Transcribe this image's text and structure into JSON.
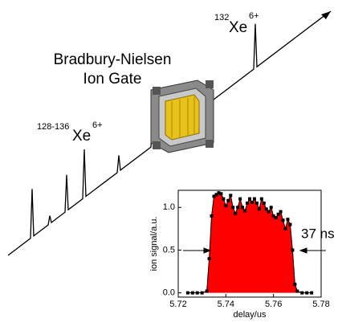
{
  "figure": {
    "ion_top": {
      "mass": "132",
      "element": "Xe",
      "charge": "6+"
    },
    "gate_label": [
      "Bradbury-Nielsen",
      "Ion Gate"
    ],
    "ion_left": {
      "mass": "128-136",
      "element": "Xe",
      "charge": "6+"
    }
  },
  "chart_data": {
    "type": "area",
    "xlabel": "delay/us",
    "ylabel": "ion signal/a.u.",
    "annotation": "37 ns",
    "xlim": [
      5.72,
      5.78
    ],
    "xticks": [
      5.72,
      5.74,
      5.76,
      5.78
    ],
    "ylim": [
      -0.05,
      1.2
    ],
    "yticks": [
      {
        "value": 0,
        "label": "0.0"
      },
      0.5,
      {
        "value": 1,
        "label": "1.0"
      }
    ],
    "color": "#ff0000",
    "x": [
      5.724,
      5.726,
      5.728,
      5.73,
      5.732,
      5.733,
      5.734,
      5.735,
      5.736,
      5.737,
      5.738,
      5.739,
      5.74,
      5.741,
      5.742,
      5.743,
      5.744,
      5.745,
      5.746,
      5.747,
      5.748,
      5.749,
      5.75,
      5.751,
      5.752,
      5.753,
      5.754,
      5.755,
      5.756,
      5.757,
      5.758,
      5.759,
      5.76,
      5.761,
      5.762,
      5.763,
      5.764,
      5.765,
      5.766,
      5.767,
      5.768,
      5.769,
      5.77,
      5.772,
      5.774,
      5.776
    ],
    "values": [
      0,
      0,
      0,
      0,
      0.02,
      0.4,
      0.9,
      1.13,
      1.15,
      1.17,
      1.16,
      1.1,
      1.02,
      1.08,
      1.14,
      1.0,
      0.93,
      1.0,
      1.1,
      1.0,
      0.96,
      1.05,
      1.1,
      1.06,
      1.1,
      1.05,
      0.98,
      1.1,
      1.05,
      0.98,
      0.95,
      1.0,
      0.9,
      0.88,
      0.92,
      0.95,
      0.85,
      0.75,
      0.86,
      0.8,
      0.5,
      0.1,
      0.02,
      0,
      0,
      0
    ]
  }
}
